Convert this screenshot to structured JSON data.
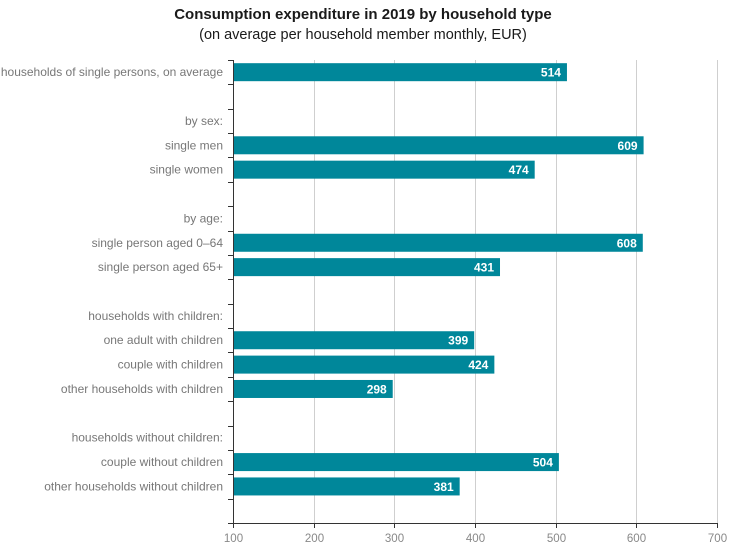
{
  "chart_data": {
    "type": "bar",
    "orientation": "horizontal",
    "title": "Consumption expenditure in 2019 by household type",
    "subtitle": "(on average per household member monthly, EUR)",
    "xlim": [
      100,
      700
    ],
    "x_ticks": [
      100,
      200,
      300,
      400,
      500,
      600,
      700
    ],
    "grid": true,
    "bar_color": "#00879a",
    "rows": [
      {
        "label": "households of single persons, on average",
        "value": 514
      },
      {
        "label": "",
        "value": null
      },
      {
        "label": "by sex:",
        "value": null
      },
      {
        "label": "single men",
        "value": 609
      },
      {
        "label": "single women",
        "value": 474
      },
      {
        "label": "",
        "value": null
      },
      {
        "label": "by age:",
        "value": null
      },
      {
        "label": "single person aged 0–64",
        "value": 608
      },
      {
        "label": "single person aged 65+",
        "value": 431
      },
      {
        "label": "",
        "value": null
      },
      {
        "label": "households with children:",
        "value": null
      },
      {
        "label": "one adult with children",
        "value": 399
      },
      {
        "label": "couple with children",
        "value": 424
      },
      {
        "label": "other households with children",
        "value": 298
      },
      {
        "label": "",
        "value": null
      },
      {
        "label": "households without children:",
        "value": null
      },
      {
        "label": "couple without children",
        "value": 504
      },
      {
        "label": "other households without children",
        "value": 381
      },
      {
        "label": "",
        "value": null
      }
    ]
  }
}
